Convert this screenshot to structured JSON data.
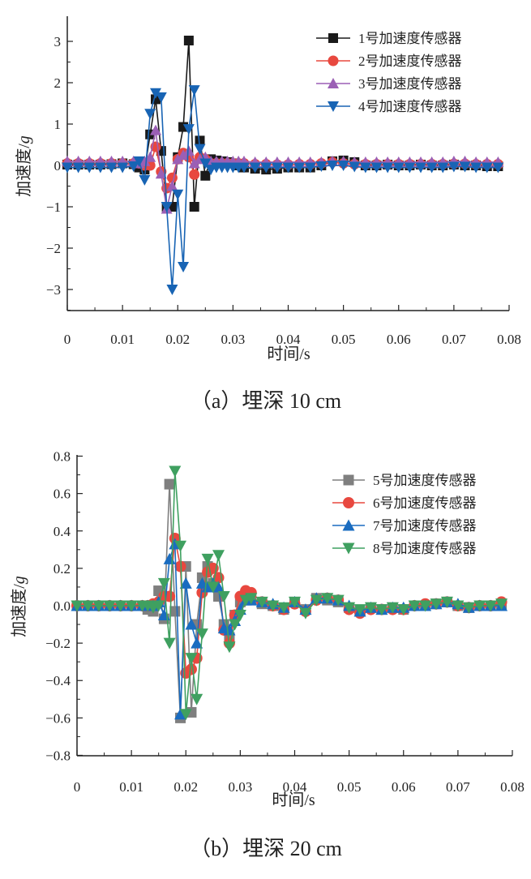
{
  "chart_data": [
    {
      "type": "line",
      "caption": "（a）埋深 10 cm",
      "xlabel": "时间/s",
      "ylabel": "加速度/",
      "ylabel_unit": "g",
      "xlim": [
        0,
        0.08
      ],
      "ylim": [
        -3.5,
        3.6
      ],
      "xticks": [
        "0",
        "0.01",
        "0.02",
        "0.03",
        "0.04",
        "0.05",
        "0.06",
        "0.07",
        "0.08"
      ],
      "yticks": [
        "3",
        "2",
        "1",
        "0",
        "−1",
        "−2",
        "−3"
      ],
      "ytick_values": [
        3,
        2,
        1,
        0,
        -1,
        -2,
        -3
      ],
      "grid": false,
      "legend_position": "top-right",
      "x": [
        0,
        0.002,
        0.004,
        0.006,
        0.008,
        0.01,
        0.012,
        0.013,
        0.014,
        0.015,
        0.016,
        0.017,
        0.018,
        0.019,
        0.02,
        0.021,
        0.022,
        0.023,
        0.024,
        0.025,
        0.026,
        0.027,
        0.028,
        0.029,
        0.03,
        0.031,
        0.032,
        0.034,
        0.036,
        0.038,
        0.04,
        0.042,
        0.044,
        0.046,
        0.048,
        0.05,
        0.052,
        0.054,
        0.056,
        0.058,
        0.06,
        0.062,
        0.064,
        0.066,
        0.068,
        0.07,
        0.072,
        0.074,
        0.076,
        0.078
      ],
      "series": [
        {
          "name": "1号加速度传感器",
          "color": "#1a1a1a",
          "marker": "square",
          "values": [
            0.02,
            0.02,
            0.02,
            0.02,
            0.03,
            0.05,
            0.03,
            -0.05,
            -0.1,
            0.75,
            1.6,
            0.35,
            -1.0,
            -1.0,
            0.2,
            0.93,
            3.02,
            -1.0,
            0.6,
            -0.25,
            0.15,
            0.12,
            0.1,
            0.08,
            0.05,
            0.0,
            -0.05,
            -0.08,
            -0.1,
            -0.08,
            -0.05,
            -0.05,
            -0.05,
            0.0,
            0.1,
            0.12,
            0.08,
            0.0,
            0.0,
            0.02,
            0.0,
            0.0,
            0.02,
            0.0,
            0.0,
            0.02,
            0.0,
            0.0,
            -0.02,
            -0.02
          ]
        },
        {
          "name": "2号加速度传感器",
          "color": "#e8483f",
          "marker": "circle",
          "values": [
            0.05,
            0.05,
            0.05,
            0.05,
            0.05,
            0.05,
            0.05,
            0.05,
            0.0,
            0.0,
            0.45,
            -0.15,
            -0.55,
            -0.3,
            0.15,
            0.3,
            0.2,
            -0.22,
            0.2,
            0.15,
            0.05,
            0.05,
            0.05,
            0.05,
            0.05,
            0.05,
            0.05,
            0.03,
            0.03,
            0.02,
            0.02,
            0.03,
            0.03,
            0.05,
            0.08,
            0.05,
            0.03,
            0.03,
            0.03,
            0.03,
            0.03,
            0.03,
            0.03,
            0.03,
            0.03,
            0.04,
            0.04,
            0.03,
            0.03,
            0.03
          ]
        },
        {
          "name": "3号加速度传感器",
          "color": "#9b5fb5",
          "marker": "triangle-up",
          "values": [
            0.1,
            0.1,
            0.1,
            0.1,
            0.1,
            0.1,
            0.1,
            0.05,
            0.1,
            0.2,
            0.85,
            -0.2,
            -1.05,
            -0.5,
            0.15,
            0.25,
            0.35,
            0.05,
            0.15,
            0.2,
            0.1,
            0.1,
            0.1,
            0.1,
            0.1,
            0.1,
            0.1,
            0.08,
            0.08,
            0.08,
            0.08,
            0.08,
            0.08,
            0.08,
            0.1,
            0.1,
            0.08,
            0.08,
            0.08,
            0.08,
            0.08,
            0.08,
            0.08,
            0.08,
            0.08,
            0.1,
            0.1,
            0.08,
            0.08,
            0.08
          ]
        },
        {
          "name": "4号加速度传感器",
          "color": "#1864b4",
          "marker": "triangle-down",
          "values": [
            -0.05,
            -0.05,
            -0.05,
            -0.05,
            -0.05,
            -0.05,
            -0.02,
            0.1,
            -0.35,
            1.25,
            1.75,
            1.65,
            -1.0,
            -3.0,
            -0.7,
            -2.45,
            0.88,
            1.82,
            0.4,
            0.05,
            -0.1,
            -0.05,
            -0.05,
            -0.05,
            -0.05,
            -0.05,
            -0.05,
            -0.05,
            -0.05,
            -0.05,
            -0.05,
            -0.05,
            -0.05,
            -0.02,
            0.0,
            0.0,
            -0.03,
            -0.05,
            -0.05,
            -0.05,
            -0.05,
            -0.05,
            -0.05,
            -0.05,
            -0.05,
            -0.03,
            -0.03,
            -0.05,
            -0.05,
            -0.05
          ]
        }
      ]
    },
    {
      "type": "line",
      "caption": "（b）埋深 20 cm",
      "xlabel": "时间/s",
      "ylabel": "加速度/",
      "ylabel_unit": "g",
      "xlim": [
        0,
        0.08
      ],
      "ylim": [
        -0.8,
        0.8
      ],
      "xticks": [
        "0",
        "0.01",
        "0.02",
        "0.03",
        "0.04",
        "0.05",
        "0.06",
        "0.07",
        "0.08"
      ],
      "yticks": [
        "0.8",
        "0.6",
        "0.4",
        "0.2",
        "0.0",
        "−0.2",
        "−0.4",
        "−0.6",
        "−0.8"
      ],
      "ytick_values": [
        0.8,
        0.6,
        0.4,
        0.2,
        0,
        -0.2,
        -0.4,
        -0.6,
        -0.8
      ],
      "grid": false,
      "legend_position": "top-right",
      "x": [
        0,
        0.002,
        0.004,
        0.006,
        0.008,
        0.01,
        0.012,
        0.013,
        0.014,
        0.015,
        0.016,
        0.017,
        0.018,
        0.019,
        0.02,
        0.021,
        0.022,
        0.023,
        0.024,
        0.025,
        0.026,
        0.027,
        0.028,
        0.029,
        0.03,
        0.031,
        0.032,
        0.034,
        0.036,
        0.038,
        0.04,
        0.042,
        0.044,
        0.046,
        0.048,
        0.05,
        0.052,
        0.054,
        0.056,
        0.058,
        0.06,
        0.062,
        0.064,
        0.066,
        0.068,
        0.07,
        0.072,
        0.074,
        0.076,
        0.078
      ],
      "series": [
        {
          "name": "5号加速度传感器",
          "color": "#7f7f7f",
          "marker": "square",
          "values": [
            0,
            0,
            0,
            0,
            0,
            0,
            0,
            -0.02,
            -0.03,
            0.08,
            -0.07,
            0.65,
            -0.03,
            -0.6,
            0.21,
            -0.57,
            -0.1,
            0.15,
            0.21,
            0.12,
            0.05,
            -0.1,
            -0.17,
            -0.05,
            0.02,
            0.04,
            0.03,
            0.01,
            0.0,
            -0.02,
            0.02,
            -0.02,
            0.04,
            0.03,
            0.02,
            -0.01,
            -0.03,
            -0.01,
            -0.02,
            -0.01,
            -0.02,
            0.0,
            0.0,
            0.01,
            0.02,
            0.0,
            -0.01,
            0.0,
            0.0,
            0.01
          ]
        },
        {
          "name": "6号加速度传感器",
          "color": "#e8483f",
          "marker": "circle",
          "values": [
            0,
            0,
            0,
            0,
            0,
            0,
            0,
            0.0,
            0.01,
            0.02,
            0.05,
            0.05,
            0.36,
            0.21,
            -0.36,
            -0.34,
            -0.28,
            0.07,
            0.18,
            0.2,
            0.15,
            -0.13,
            -0.2,
            -0.05,
            0.05,
            0.08,
            0.07,
            0.02,
            0.0,
            -0.02,
            0.01,
            -0.03,
            0.03,
            0.04,
            0.03,
            -0.02,
            -0.04,
            -0.02,
            -0.02,
            -0.02,
            -0.02,
            0.0,
            0.01,
            0.01,
            0.02,
            0.0,
            -0.01,
            0.0,
            0.0,
            0.02
          ]
        },
        {
          "name": "7号加速度传感器",
          "color": "#1a6cc0",
          "marker": "triangle-up",
          "values": [
            0,
            0,
            0,
            0,
            0,
            0,
            0,
            0.0,
            0.0,
            0.02,
            -0.05,
            0.25,
            0.33,
            -0.58,
            0.12,
            -0.1,
            -0.2,
            0.12,
            0.1,
            0.12,
            0.1,
            -0.12,
            -0.13,
            -0.08,
            -0.02,
            0.03,
            0.03,
            0.02,
            0.01,
            -0.01,
            0.02,
            -0.02,
            0.04,
            0.04,
            0.03,
            0.0,
            -0.03,
            -0.01,
            -0.02,
            -0.01,
            -0.01,
            0.0,
            0.0,
            0.01,
            0.02,
            0.01,
            -0.01,
            0.0,
            0.0,
            0.0
          ]
        },
        {
          "name": "8号加速度传感器",
          "color": "#3fa060",
          "marker": "triangle-down",
          "values": [
            0,
            0,
            0,
            0,
            0,
            0,
            0,
            0.0,
            -0.01,
            0.0,
            0.12,
            -0.2,
            0.72,
            0.32,
            -0.58,
            -0.28,
            -0.5,
            -0.15,
            0.25,
            0.1,
            0.27,
            0.05,
            -0.22,
            -0.1,
            -0.05,
            0.03,
            0.04,
            0.02,
            0.0,
            -0.01,
            0.02,
            -0.04,
            0.03,
            0.04,
            0.03,
            -0.01,
            -0.02,
            -0.01,
            -0.02,
            -0.01,
            -0.02,
            0.0,
            0.0,
            0.01,
            0.02,
            0.0,
            -0.01,
            0.0,
            0.0,
            0.01
          ]
        }
      ]
    }
  ]
}
